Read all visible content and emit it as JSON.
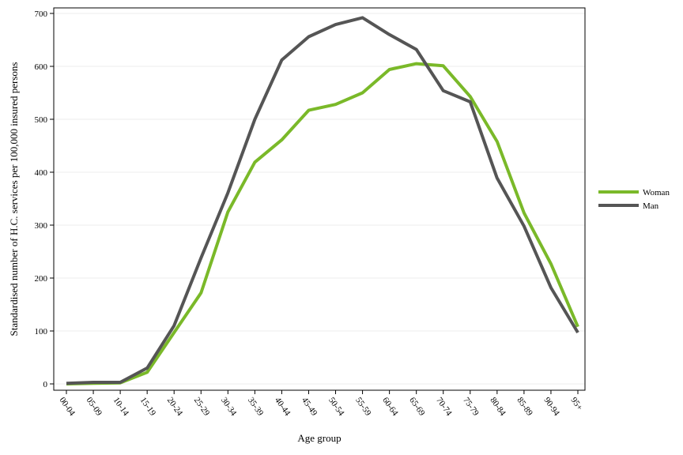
{
  "chart_data": {
    "type": "line",
    "title": "",
    "xlabel": "Age group",
    "ylabel": "Standardised number of H.C. services per 100,000 insured persons",
    "categories": [
      "00-04",
      "05-09",
      "10-14",
      "15-19",
      "20-24",
      "25-29",
      "30-34",
      "35-39",
      "40-44",
      "45-49",
      "50-54",
      "55-59",
      "60-64",
      "65-69",
      "70-74",
      "75-79",
      "80-84",
      "85-89",
      "90-94",
      "95+"
    ],
    "ylim": [
      0,
      700
    ],
    "yticks": [
      0,
      100,
      200,
      300,
      400,
      500,
      600,
      700
    ],
    "grid": true,
    "legend_position": "right",
    "series": [
      {
        "name": "Woman",
        "color": "#7ab929",
        "values": [
          0,
          1,
          2,
          22,
          97,
          172,
          325,
          419,
          461,
          517,
          528,
          550,
          594,
          605,
          601,
          543,
          458,
          323,
          227,
          108
        ]
      },
      {
        "name": "Man",
        "color": "#555555",
        "values": [
          1,
          3,
          3,
          30,
          110,
          238,
          361,
          500,
          612,
          656,
          679,
          692,
          660,
          632,
          554,
          533,
          389,
          298,
          182,
          97
        ]
      }
    ]
  }
}
